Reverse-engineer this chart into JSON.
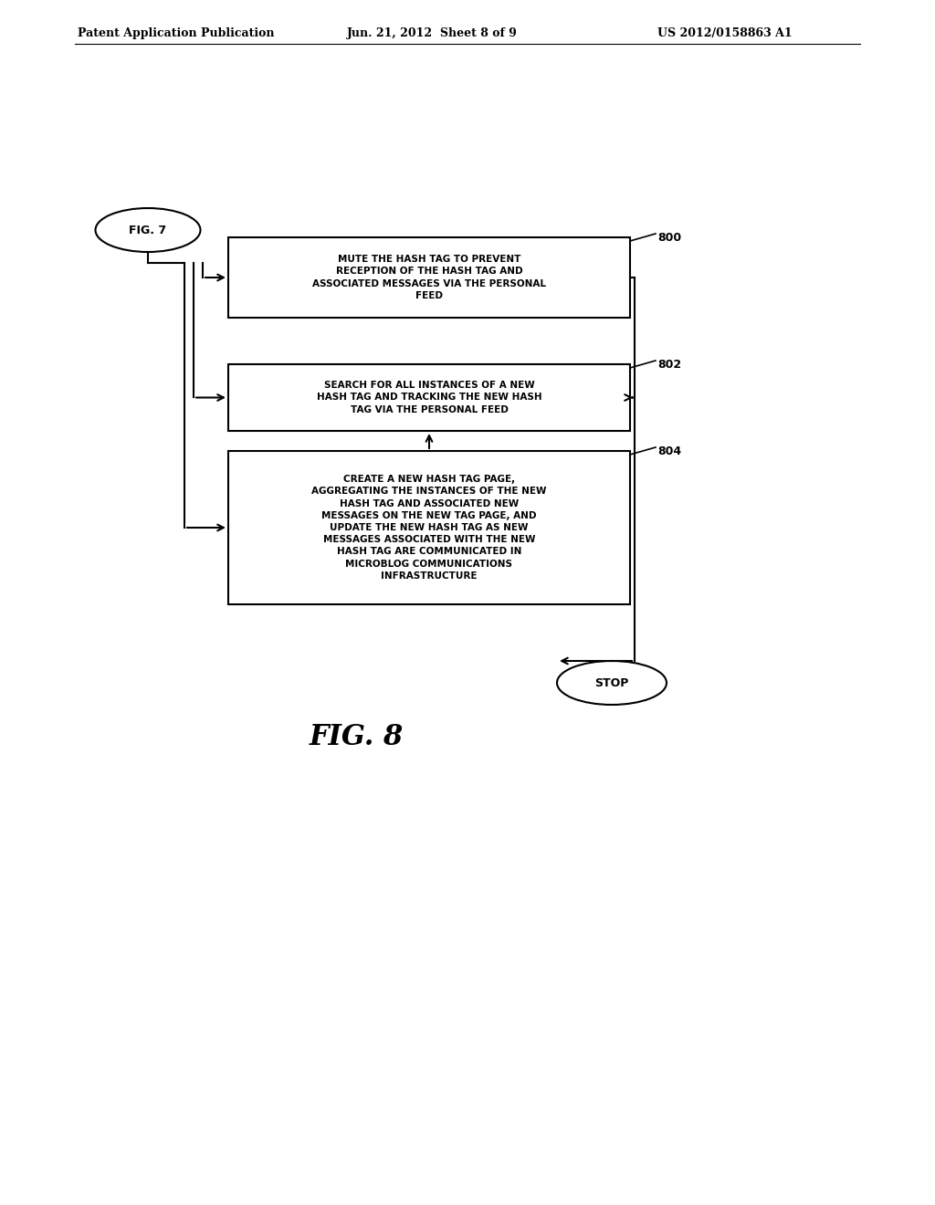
{
  "bg_color": "#ffffff",
  "header_left": "Patent Application Publication",
  "header_mid": "Jun. 21, 2012  Sheet 8 of 9",
  "header_right": "US 2012/0158863 A1",
  "fig7_label": "FIG. 7",
  "box800_label": "800",
  "box800_text": "MUTE THE HASH TAG TO PREVENT\nRECEPTION OF THE HASH TAG AND\nASSOCIATED MESSAGES VIA THE PERSONAL\nFEED",
  "box802_label": "802",
  "box802_text": "SEARCH FOR ALL INSTANCES OF A NEW\nHASH TAG AND TRACKING THE NEW HASH\nTAG VIA THE PERSONAL FEED",
  "box804_label": "804",
  "box804_text": "CREATE A NEW HASH TAG PAGE,\nAGGREGATING THE INSTANCES OF THE NEW\nHASH TAG AND ASSOCIATED NEW\nMESSAGES ON THE NEW TAG PAGE, AND\nUPDATE THE NEW HASH TAG AS NEW\nMESSAGES ASSOCIATED WITH THE NEW\nHASH TAG ARE COMMUNICATED IN\nMICROBLOG COMMUNICATIONS\nINFRASTRUCTURE",
  "stop_label": "STOP",
  "fig_label": "FIG. 8"
}
